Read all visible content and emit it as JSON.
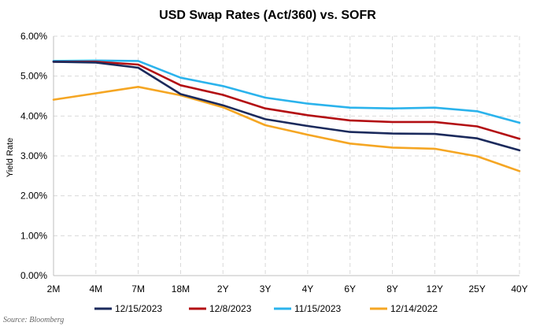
{
  "chart_data": {
    "type": "line",
    "title": "USD Swap Rates (Act/360) vs. SOFR",
    "xlabel": "",
    "ylabel": "Yield Rate",
    "categories": [
      "2M",
      "4M",
      "7M",
      "18M",
      "2Y",
      "3Y",
      "4Y",
      "6Y",
      "8Y",
      "12Y",
      "25Y",
      "40Y"
    ],
    "ylim": [
      0,
      6
    ],
    "yticks": [
      "0.00%",
      "1.00%",
      "2.00%",
      "3.00%",
      "4.00%",
      "5.00%",
      "6.00%"
    ],
    "grid": true,
    "legend_position": "bottom",
    "series": [
      {
        "name": "12/15/2023",
        "color": "#1b2a5c",
        "values": [
          5.36,
          5.34,
          5.21,
          4.55,
          4.27,
          3.92,
          3.75,
          3.6,
          3.56,
          3.55,
          3.44,
          3.14
        ]
      },
      {
        "name": "12/8/2023",
        "color": "#b30f13",
        "values": [
          5.36,
          5.36,
          5.29,
          4.77,
          4.53,
          4.19,
          4.02,
          3.89,
          3.85,
          3.85,
          3.74,
          3.43
        ]
      },
      {
        "name": "11/15/2023",
        "color": "#2bb3ec",
        "values": [
          5.38,
          5.39,
          5.38,
          4.96,
          4.75,
          4.46,
          4.31,
          4.21,
          4.19,
          4.21,
          4.12,
          3.83
        ]
      },
      {
        "name": "12/14/2022",
        "color": "#f5a623",
        "values": [
          4.41,
          4.57,
          4.73,
          4.52,
          4.22,
          3.77,
          3.53,
          3.31,
          3.21,
          3.18,
          2.99,
          2.62
        ]
      }
    ],
    "source": "Source: Bloomberg"
  }
}
